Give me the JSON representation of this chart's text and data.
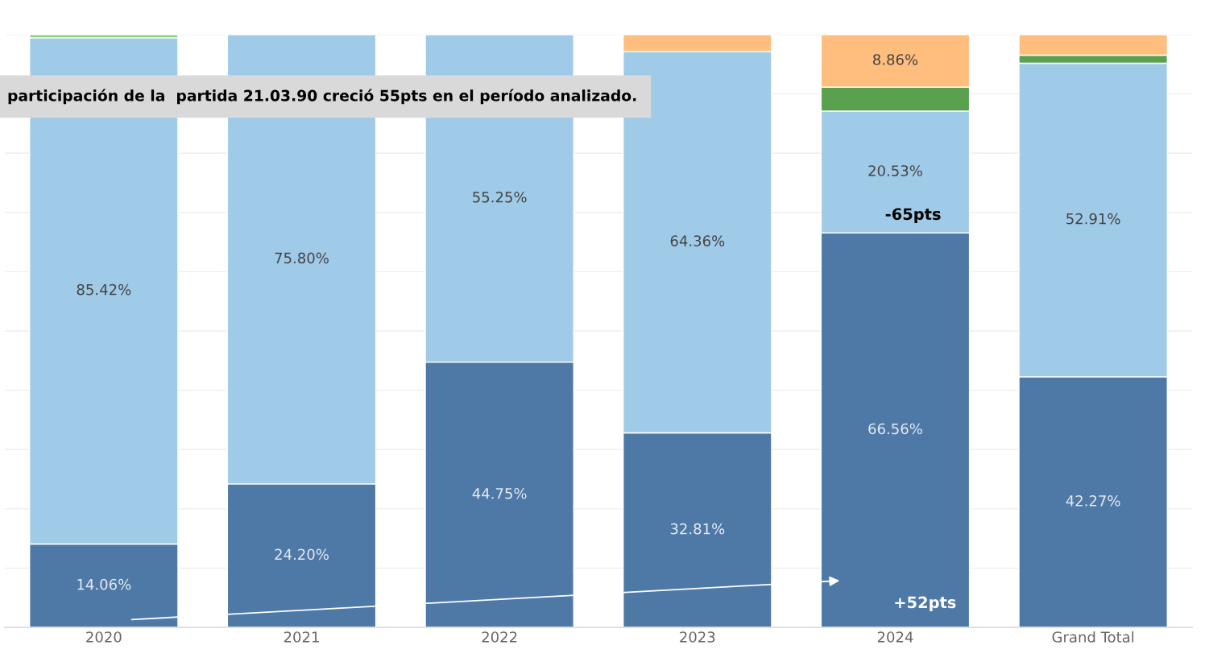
{
  "chart_data": {
    "type": "bar",
    "stacked": true,
    "categories": [
      "2020",
      "2021",
      "2022",
      "2023",
      "2024",
      "Grand Total"
    ],
    "series": [
      {
        "color": "#4e79a7",
        "values": [
          14.06,
          24.2,
          44.75,
          32.81,
          66.56,
          42.27
        ],
        "value_labels": [
          "14.06%",
          "24.20%",
          "44.75%",
          "32.81%",
          "66.56%",
          "42.27%"
        ]
      },
      {
        "color": "#a0cbe8",
        "values": [
          85.42,
          75.8,
          55.25,
          64.36,
          20.53,
          52.91
        ],
        "value_labels": [
          "85.42%",
          "75.80%",
          "55.25%",
          "64.36%",
          "20.53%",
          "52.91%"
        ]
      },
      {
        "color": "#8cd17d",
        "values": [
          0.52,
          null,
          null,
          null,
          null,
          null
        ]
      },
      {
        "color": "#59a14f",
        "values": [
          null,
          null,
          null,
          null,
          4.05,
          1.36
        ]
      },
      {
        "color": "#ffbe7d",
        "values": [
          null,
          null,
          null,
          2.83,
          8.86,
          3.46
        ],
        "value_labels": [
          null,
          null,
          null,
          null,
          "8.86%",
          null
        ]
      }
    ],
    "ylim": [
      0,
      100
    ],
    "yticks": [
      {
        "value": 0,
        "label": null
      },
      {
        "value": 10,
        "label": null
      },
      {
        "value": 20,
        "label": null
      },
      {
        "value": 30,
        "label": null
      },
      {
        "value": 40,
        "label": null
      },
      {
        "value": 50,
        "label": null
      },
      {
        "value": 60,
        "label": null
      },
      {
        "value": 70,
        "label": null
      },
      {
        "value": 80,
        "label": null
      },
      {
        "value": 90,
        "label": null
      },
      {
        "value": 100,
        "label": null
      }
    ],
    "tick_labels": "x",
    "grid": "y",
    "legend": false,
    "annotations": [
      "participación de la  partida 21.03.90 creció 55pts en el período analizado.",
      "-65pts",
      "+52pts"
    ]
  }
}
